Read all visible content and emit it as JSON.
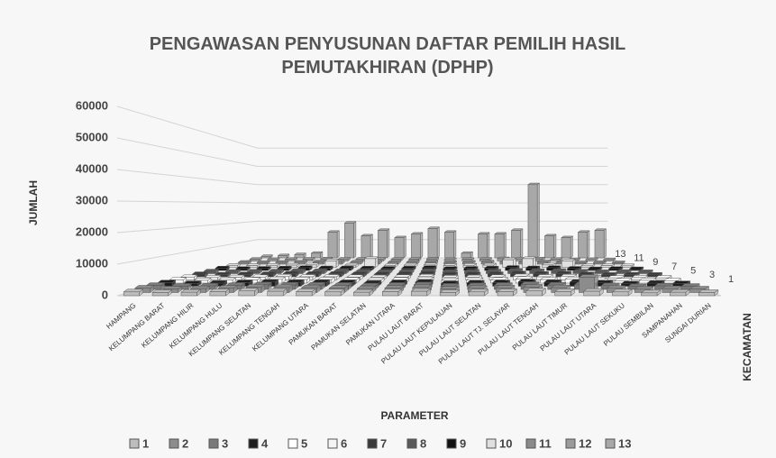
{
  "chart_data": {
    "type": "bar3d",
    "title": "PENGAWASAN PENYUSUNAN DAFTAR PEMILIH HASIL PEMUTAKHIRAN (DPHP)",
    "x_label": "PARAMETER",
    "y_label": "JUMLAH",
    "z_label": "KECAMATAN",
    "categories": [
      "HAMPANG",
      "KELUMPANG BARAT",
      "KELUMPANG HILIR",
      "KELUMPANG HULU",
      "KELUMPANG SELATAN",
      "KELUMPANG TENGAH",
      "KELUMPANG UTARA",
      "PAMUKAN BARAT",
      "PAMUKAN SELATAN",
      "PAMUKAN UTARA",
      "PULAU LAUT BARAT",
      "PULAU LAUT KEPULAUAN",
      "PULAU LAUT SELATAN",
      "PULAU LAUT TJ. SELAYAR",
      "PULAU LAUT TENGAH",
      "PULAU LAUT TIMUR",
      "PULAU LAUT UTARA",
      "PULAU LAUT SEKUKU",
      "PULAU SEMBILAN",
      "SAMPANAHAN",
      "SUNGAI DURIAN"
    ],
    "ylim": [
      0,
      60000
    ],
    "yticks": [
      0,
      10000,
      20000,
      30000,
      40000,
      50000,
      60000
    ],
    "grid": true,
    "series": [
      {
        "name": "1",
        "color": "#bdbdbd",
        "values": [
          1200,
          1000,
          1100,
          1300,
          1500,
          1400,
          1300,
          1200,
          1100,
          1300,
          1400,
          1000,
          1200,
          1300,
          1500,
          1300,
          1400,
          1200,
          900,
          1100,
          1000
        ]
      },
      {
        "name": "2",
        "color": "#8c8c8c",
        "values": [
          1500,
          1200,
          1300,
          1500,
          1800,
          1700,
          1600,
          1500,
          1300,
          1500,
          1700,
          1200,
          1400,
          1500,
          1800,
          1600,
          5000,
          1400,
          1100,
          1300,
          1200
        ]
      },
      {
        "name": "3",
        "color": "#7a7a7a",
        "values": [
          1400,
          1100,
          1200,
          1400,
          1600,
          1500,
          1500,
          1400,
          1200,
          1400,
          1600,
          1100,
          1300,
          1400,
          1700,
          1500,
          1600,
          1300,
          1000,
          1200,
          1100
        ]
      },
      {
        "name": "4",
        "color": "#1e1e1e",
        "values": [
          1300,
          1000,
          1100,
          1300,
          1500,
          1400,
          1400,
          1300,
          1100,
          1300,
          1500,
          1000,
          1200,
          1300,
          1600,
          1400,
          1500,
          1200,
          900,
          1100,
          1000
        ]
      },
      {
        "name": "5",
        "color": "#ffffff",
        "values": [
          1200,
          1000,
          1100,
          1200,
          1400,
          1300,
          1300,
          1200,
          1100,
          1200,
          1400,
          1000,
          1100,
          1200,
          1500,
          1300,
          1400,
          1100,
          900,
          1000,
          900
        ]
      },
      {
        "name": "6",
        "color": "#f4f4f4",
        "values": [
          1100,
          900,
          1000,
          1100,
          1300,
          1200,
          1200,
          1100,
          1000,
          1100,
          1300,
          900,
          1000,
          1100,
          1400,
          1200,
          1300,
          1000,
          800,
          900,
          800
        ]
      },
      {
        "name": "7",
        "color": "#3a3a3a",
        "values": [
          1100,
          900,
          1000,
          1100,
          1300,
          1200,
          1200,
          1100,
          1000,
          1100,
          1300,
          900,
          1000,
          1100,
          1400,
          1200,
          1300,
          1000,
          800,
          900,
          800
        ]
      },
      {
        "name": "8",
        "color": "#5a5a5a",
        "values": [
          1000,
          800,
          900,
          1000,
          1200,
          1100,
          1100,
          1000,
          900,
          1000,
          1200,
          800,
          900,
          1000,
          1300,
          1100,
          1200,
          900,
          700,
          800,
          700
        ]
      },
      {
        "name": "9",
        "color": "#111111",
        "values": [
          1000,
          800,
          900,
          1000,
          1200,
          1100,
          1100,
          1000,
          900,
          1000,
          1200,
          800,
          900,
          1000,
          1300,
          1100,
          1200,
          900,
          700,
          800,
          700
        ]
      },
      {
        "name": "10",
        "color": "#e0e0e0",
        "values": [
          900,
          800,
          900,
          1000,
          1100,
          3000,
          1000,
          4000,
          900,
          1000,
          1100,
          800,
          900,
          1000,
          3500,
          4000,
          1100,
          3000,
          700,
          800,
          700
        ]
      },
      {
        "name": "11",
        "color": "#8a8a8a",
        "values": [
          900,
          800,
          900,
          1000,
          1100,
          1000,
          1000,
          1000,
          900,
          1000,
          1100,
          800,
          900,
          1000,
          1200,
          1000,
          1100,
          900,
          700,
          800,
          700
        ]
      },
      {
        "name": "12",
        "color": "#9a9a9a",
        "values": [
          900,
          800,
          900,
          1000,
          1100,
          1000,
          1000,
          1000,
          900,
          1000,
          1100,
          800,
          900,
          1000,
          1200,
          1000,
          1100,
          900,
          700,
          800,
          700
        ]
      },
      {
        "name": "13",
        "color": "#a8a8a8",
        "values": [
          800,
          1200,
          1800,
          2500,
          14000,
          19000,
          12000,
          15000,
          11000,
          13000,
          16000,
          14000,
          2500,
          13000,
          13000,
          15000,
          40000,
          12000,
          11000,
          14000,
          15000
        ]
      }
    ]
  }
}
